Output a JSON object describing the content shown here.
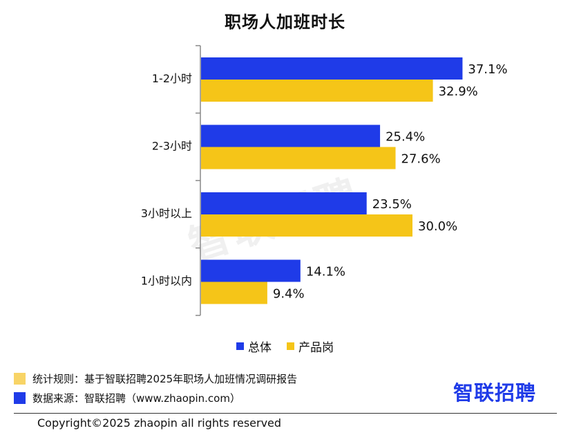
{
  "chart_data": {
    "type": "bar",
    "orientation": "horizontal",
    "title": "职场人加班时长",
    "categories": [
      "1-2小时",
      "2-3小时",
      "3小时以上",
      "1小时以内"
    ],
    "series": [
      {
        "name": "总体",
        "values": [
          37.1,
          25.4,
          23.5,
          14.1
        ],
        "labels": [
          "37.1%",
          "25.4%",
          "23.5%",
          "14.1%"
        ],
        "color": "#1f3be8"
      },
      {
        "name": "产品岗",
        "values": [
          32.9,
          27.6,
          30.0,
          9.4
        ],
        "labels": [
          "32.9%",
          "27.6%",
          "30.0%",
          "9.4%"
        ],
        "color": "#f5c518"
      }
    ],
    "xlim": [
      0,
      50
    ],
    "grid": false,
    "legend": "bottom"
  },
  "watermark": "智联招聘",
  "footer": {
    "rule_label": "统计规则：基于智联招聘2025年职场人加班情况调研报告",
    "rule_color": "#f8d466",
    "source_label": "数据来源：智联招聘（www.zhaopin.com）",
    "source_color": "#1f3be8",
    "brand": "智联招聘",
    "copyright": "Copyright©2025 zhaopin all rights reserved"
  }
}
